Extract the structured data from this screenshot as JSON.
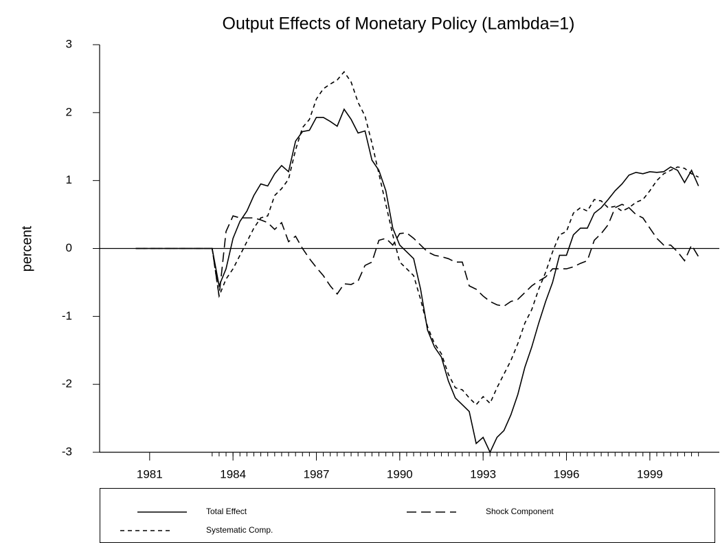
{
  "chart_data": {
    "type": "line",
    "title": "Output Effects of Monetary Policy (Lambda=1)",
    "y_label": "percent",
    "x": [
      1980.5,
      1983.25,
      1983.5,
      1983.75,
      1984,
      1984.25,
      1984.5,
      1984.75,
      1985,
      1985.25,
      1985.5,
      1985.75,
      1986,
      1986.25,
      1986.5,
      1986.75,
      1987,
      1987.25,
      1987.5,
      1987.75,
      1988,
      1988.25,
      1988.5,
      1988.75,
      1989,
      1989.25,
      1989.5,
      1989.75,
      1990,
      1990.25,
      1990.5,
      1990.75,
      1991,
      1991.25,
      1991.5,
      1991.75,
      1992,
      1992.25,
      1992.5,
      1992.75,
      1993,
      1993.25,
      1993.5,
      1993.75,
      1994,
      1994.25,
      1994.5,
      1994.75,
      1995,
      1995.25,
      1995.5,
      1995.75,
      1996,
      1996.25,
      1996.5,
      1996.75,
      1997,
      1997.25,
      1997.5,
      1997.75,
      1998,
      1998.25,
      1998.5,
      1998.75,
      1999,
      1999.25,
      1999.5,
      1999.75,
      2000,
      2000.25,
      2000.5,
      2000.75
    ],
    "series": [
      {
        "name": "Total Effect",
        "color": "#000000",
        "dash": "solid",
        "values": [
          0,
          0,
          -0.55,
          -0.3,
          0.15,
          0.4,
          0.55,
          0.78,
          0.95,
          0.92,
          1.1,
          1.22,
          1.13,
          1.58,
          1.72,
          1.74,
          1.93,
          1.93,
          1.87,
          1.8,
          2.05,
          1.9,
          1.7,
          1.73,
          1.3,
          1.15,
          0.85,
          0.3,
          0.05,
          -0.05,
          -0.15,
          -0.6,
          -1.2,
          -1.45,
          -1.6,
          -1.95,
          -2.2,
          -2.3,
          -2.4,
          -2.87,
          -2.78,
          -3.0,
          -2.78,
          -2.68,
          -2.45,
          -2.15,
          -1.75,
          -1.45,
          -1.1,
          -0.78,
          -0.5,
          -0.1,
          -0.1,
          0.2,
          0.3,
          0.3,
          0.52,
          0.6,
          0.72,
          0.85,
          0.95,
          1.08,
          1.12,
          1.1,
          1.13,
          1.12,
          1.13,
          1.2,
          1.15,
          0.97,
          1.15,
          0.92
        ]
      },
      {
        "name": "Shock Component",
        "color": "#000000",
        "dash": "long",
        "values": [
          0,
          0,
          -0.7,
          0.25,
          0.48,
          0.45,
          0.45,
          0.45,
          0.42,
          0.38,
          0.28,
          0.38,
          0.1,
          0.18,
          0.0,
          -0.15,
          -0.28,
          -0.4,
          -0.55,
          -0.67,
          -0.52,
          -0.53,
          -0.48,
          -0.25,
          -0.2,
          0.12,
          0.15,
          0.05,
          0.22,
          0.23,
          0.15,
          0.05,
          -0.05,
          -0.1,
          -0.12,
          -0.15,
          -0.2,
          -0.2,
          -0.55,
          -0.6,
          -0.7,
          -0.78,
          -0.83,
          -0.85,
          -0.78,
          -0.75,
          -0.65,
          -0.55,
          -0.48,
          -0.42,
          -0.3,
          -0.3,
          -0.3,
          -0.27,
          -0.22,
          -0.18,
          0.12,
          0.22,
          0.35,
          0.6,
          0.65,
          0.6,
          0.5,
          0.45,
          0.3,
          0.15,
          0.05,
          0.05,
          -0.05,
          -0.18,
          0.05,
          -0.12
        ]
      },
      {
        "name": "Systematic Comp.",
        "color": "#000000",
        "dash": "short",
        "values": [
          0,
          0,
          -0.7,
          -0.45,
          -0.3,
          -0.1,
          0.1,
          0.3,
          0.45,
          0.48,
          0.78,
          0.88,
          1.02,
          1.45,
          1.78,
          1.9,
          2.2,
          2.35,
          2.42,
          2.48,
          2.6,
          2.45,
          2.15,
          1.95,
          1.55,
          1.1,
          0.65,
          0.2,
          -0.2,
          -0.3,
          -0.4,
          -0.75,
          -1.15,
          -1.4,
          -1.55,
          -1.85,
          -2.05,
          -2.08,
          -2.2,
          -2.3,
          -2.18,
          -2.28,
          -2.05,
          -1.85,
          -1.65,
          -1.4,
          -1.1,
          -0.9,
          -0.6,
          -0.35,
          -0.05,
          0.2,
          0.25,
          0.52,
          0.6,
          0.55,
          0.72,
          0.7,
          0.6,
          0.62,
          0.55,
          0.6,
          0.68,
          0.72,
          0.85,
          1.0,
          1.1,
          1.15,
          1.2,
          1.18,
          1.1,
          1.05
        ]
      }
    ],
    "xlim": [
      1979.2,
      2001.5
    ],
    "xticks": [
      1981,
      1984,
      1987,
      1990,
      1993,
      1996,
      1999
    ],
    "ylim": [
      -3,
      3
    ],
    "yticks": [
      -3,
      -2,
      -1,
      0,
      1,
      2,
      3
    ],
    "reference_line": 0,
    "legend": "bottom"
  }
}
